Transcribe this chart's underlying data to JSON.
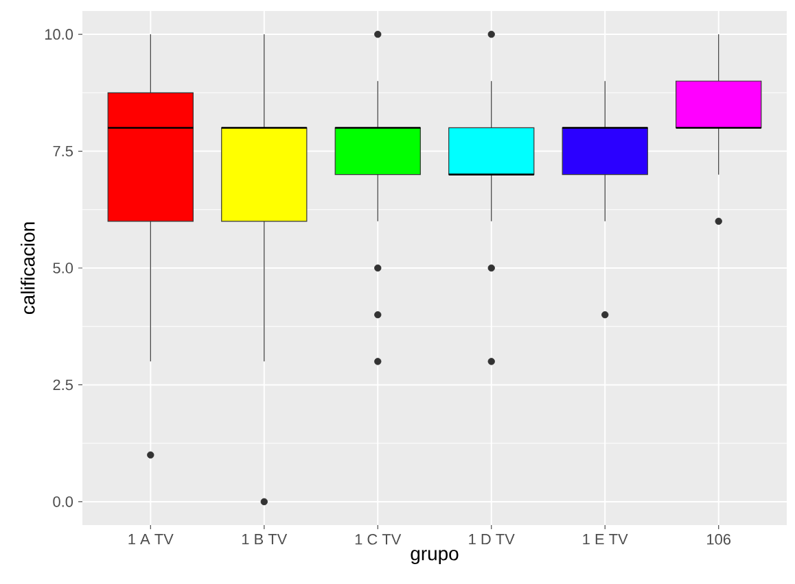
{
  "chart_data": {
    "type": "box",
    "xlabel": "grupo",
    "ylabel": "calificacion",
    "categories": [
      "1 A TV",
      "1 B TV",
      "1 C TV",
      "1 D TV",
      "1 E TV",
      "106"
    ],
    "colors": [
      "#ff0000",
      "#ffff00",
      "#00ff00",
      "#00ffff",
      "#2b00ff",
      "#ff00ff"
    ],
    "boxes": [
      {
        "low": 3,
        "q1": 6,
        "median": 8,
        "q3": 8.75,
        "high": 10,
        "outliers": [
          1
        ]
      },
      {
        "low": 3,
        "q1": 6,
        "median": 8,
        "q3": 8,
        "high": 10,
        "outliers": [
          0
        ]
      },
      {
        "low": 6,
        "q1": 7,
        "median": 8,
        "q3": 8,
        "high": 9,
        "outliers": [
          10,
          5,
          4,
          3
        ]
      },
      {
        "low": 6,
        "q1": 7,
        "median": 7,
        "q3": 8,
        "high": 9,
        "outliers": [
          10,
          5,
          3
        ]
      },
      {
        "low": 6,
        "q1": 7,
        "median": 8,
        "q3": 8,
        "high": 9,
        "outliers": [
          4
        ]
      },
      {
        "low": 7,
        "q1": 8,
        "median": 8,
        "q3": 9,
        "high": 10,
        "outliers": [
          6
        ]
      }
    ],
    "ylim": [
      -0.5,
      10.5
    ],
    "yticks": [
      {
        "value": 0,
        "label": "0.0"
      },
      {
        "value": 2.5,
        "label": "2.5"
      },
      {
        "value": 5,
        "label": "5.0"
      },
      {
        "value": 7.5,
        "label": "7.5"
      },
      {
        "value": 10,
        "label": "10.0"
      }
    ],
    "grid": true
  }
}
